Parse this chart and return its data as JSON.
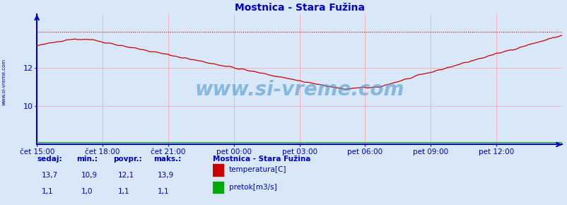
{
  "title": "Mostnica - Stara Fužina",
  "bg_color": "#d8e8f8",
  "plot_bg_color": "#d8e8f8",
  "grid_color": "#ffaaaa",
  "x_labels": [
    "čet 15:00",
    "čet 18:00",
    "čet 21:00",
    "pet 00:00",
    "pet 03:00",
    "pet 06:00",
    "pet 09:00",
    "pet 12:00"
  ],
  "x_ticks": [
    0,
    36,
    72,
    108,
    144,
    180,
    216,
    252
  ],
  "total_points": 289,
  "y_lim": [
    8.0,
    14.8
  ],
  "y_ticks": [
    10,
    12
  ],
  "temp_color": "#cc0000",
  "flow_color": "#00aa00",
  "dashed_color": "#cc0000",
  "dashed_y": 13.9,
  "temp_max": 13.9,
  "temp_min": 10.9,
  "temp_avg": 12.1,
  "temp_now": 13.7,
  "flow_now": 1.1,
  "flow_min": 1.0,
  "flow_avg": 1.1,
  "flow_max": 1.1,
  "axis_color": "#0000bb",
  "label_color": "#0000bb",
  "title_color": "#0000cc",
  "watermark": "www.si-vreme.com",
  "watermark_color": "#5599cc",
  "sidebar_text": "www.si-vreme.com",
  "sidebar_color": "#0000aa",
  "legend_title": "Mostnica - Stara Fužina",
  "legend_temp_label": "temperatura[C]",
  "legend_flow_label": "pretok[m3/s]",
  "stats_headers": [
    "sedaj:",
    "min.:",
    "povpr.:",
    "maks.:"
  ],
  "temp_stats": [
    "13,7",
    "10,9",
    "12,1",
    "13,9"
  ],
  "flow_stats": [
    "1,1",
    "1,0",
    "1,1",
    "1,1"
  ]
}
